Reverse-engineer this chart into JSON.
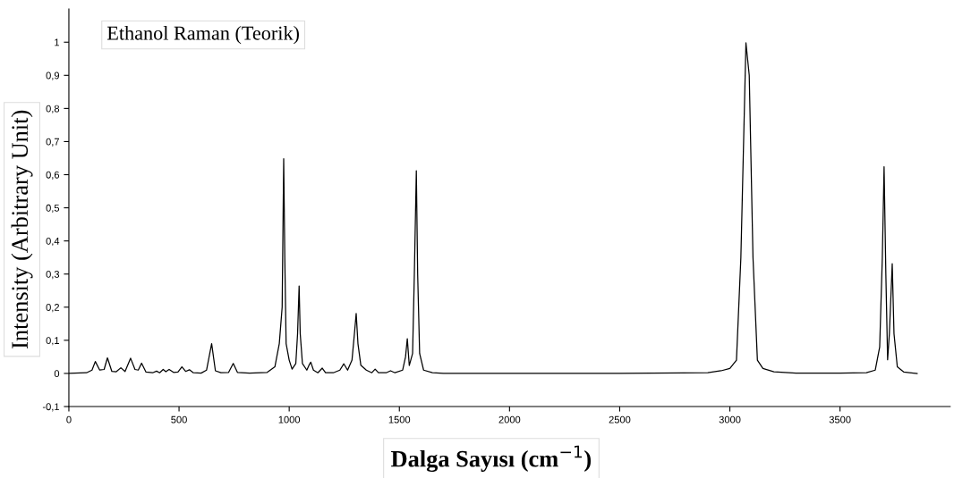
{
  "chart_data": {
    "type": "line",
    "title": "Ethanol Raman (Teorik)",
    "xlabel": "Dalga Sayısı (cm$^{−1}$)",
    "ylabel": "Intensity (Arbitrary Unit)",
    "xlim": [
      0,
      4000
    ],
    "ylim": [
      -0.1,
      1.1
    ],
    "xticks": [
      0,
      500,
      1000,
      1500,
      2000,
      2500,
      3000,
      3500
    ],
    "yticks": [
      {
        "value": -0.1,
        "label": "-0,1"
      },
      0,
      {
        "value": 0.1,
        "label": "0,1"
      },
      {
        "value": 0.2,
        "label": "0,2"
      },
      {
        "value": 0.3,
        "label": "0,3"
      },
      {
        "value": 0.4,
        "label": "0,4"
      },
      {
        "value": 0.5,
        "label": "0,5"
      },
      {
        "value": 0.6,
        "label": "0,6"
      },
      {
        "value": 0.7,
        "label": "0,7"
      },
      {
        "value": 0.8,
        "label": "0,8"
      },
      {
        "value": 0.9,
        "label": "0,9"
      },
      1
    ],
    "grid": false,
    "series": [
      {
        "color": "#000000",
        "x": [
          0,
          80,
          105,
          120,
          140,
          160,
          175,
          195,
          215,
          236,
          255,
          280,
          300,
          315,
          330,
          350,
          380,
          398,
          412,
          428,
          440,
          455,
          475,
          495,
          513,
          530,
          547,
          565,
          600,
          625,
          648,
          665,
          690,
          725,
          746,
          765,
          820,
          900,
          935,
          955,
          968,
          975,
          980,
          986,
          1000,
          1013,
          1030,
          1038,
          1045,
          1050,
          1060,
          1080,
          1090,
          1098,
          1110,
          1130,
          1150,
          1165,
          1200,
          1230,
          1248,
          1265,
          1285,
          1296,
          1304,
          1312,
          1325,
          1350,
          1375,
          1390,
          1405,
          1440,
          1460,
          1480,
          1515,
          1528,
          1536,
          1545,
          1560,
          1568,
          1577,
          1583,
          1592,
          1610,
          1650,
          1700,
          2500,
          2900,
          2960,
          3000,
          3030,
          3050,
          3073,
          3088,
          3105,
          3125,
          3150,
          3200,
          3300,
          3500,
          3620,
          3660,
          3680,
          3692,
          3700,
          3708,
          3716,
          3724,
          3737,
          3745,
          3760,
          3790,
          3850
        ],
        "values": [
          0,
          0.002,
          0.01,
          0.036,
          0.01,
          0.012,
          0.047,
          0.006,
          0.005,
          0.017,
          0.006,
          0.046,
          0.012,
          0.01,
          0.031,
          0.004,
          0.002,
          0.007,
          0.002,
          0.012,
          0.005,
          0.012,
          0.003,
          0.004,
          0.02,
          0.006,
          0.011,
          0.002,
          0.001,
          0.01,
          0.09,
          0.008,
          0.002,
          0.003,
          0.03,
          0.003,
          0.001,
          0.003,
          0.02,
          0.09,
          0.2,
          0.648,
          0.35,
          0.09,
          0.04,
          0.013,
          0.03,
          0.12,
          0.264,
          0.12,
          0.03,
          0.01,
          0.025,
          0.034,
          0.01,
          0.002,
          0.016,
          0.002,
          0.002,
          0.01,
          0.029,
          0.01,
          0.04,
          0.12,
          0.181,
          0.09,
          0.025,
          0.01,
          0.002,
          0.013,
          0.002,
          0.002,
          0.008,
          0.002,
          0.01,
          0.05,
          0.105,
          0.024,
          0.06,
          0.3,
          0.612,
          0.3,
          0.06,
          0.01,
          0.002,
          0,
          0,
          0.002,
          0.008,
          0.015,
          0.04,
          0.35,
          0.998,
          0.9,
          0.35,
          0.04,
          0.015,
          0.005,
          0.001,
          0.001,
          0.002,
          0.01,
          0.08,
          0.35,
          0.624,
          0.3,
          0.041,
          0.12,
          0.331,
          0.12,
          0.02,
          0.004,
          0
        ]
      }
    ]
  }
}
